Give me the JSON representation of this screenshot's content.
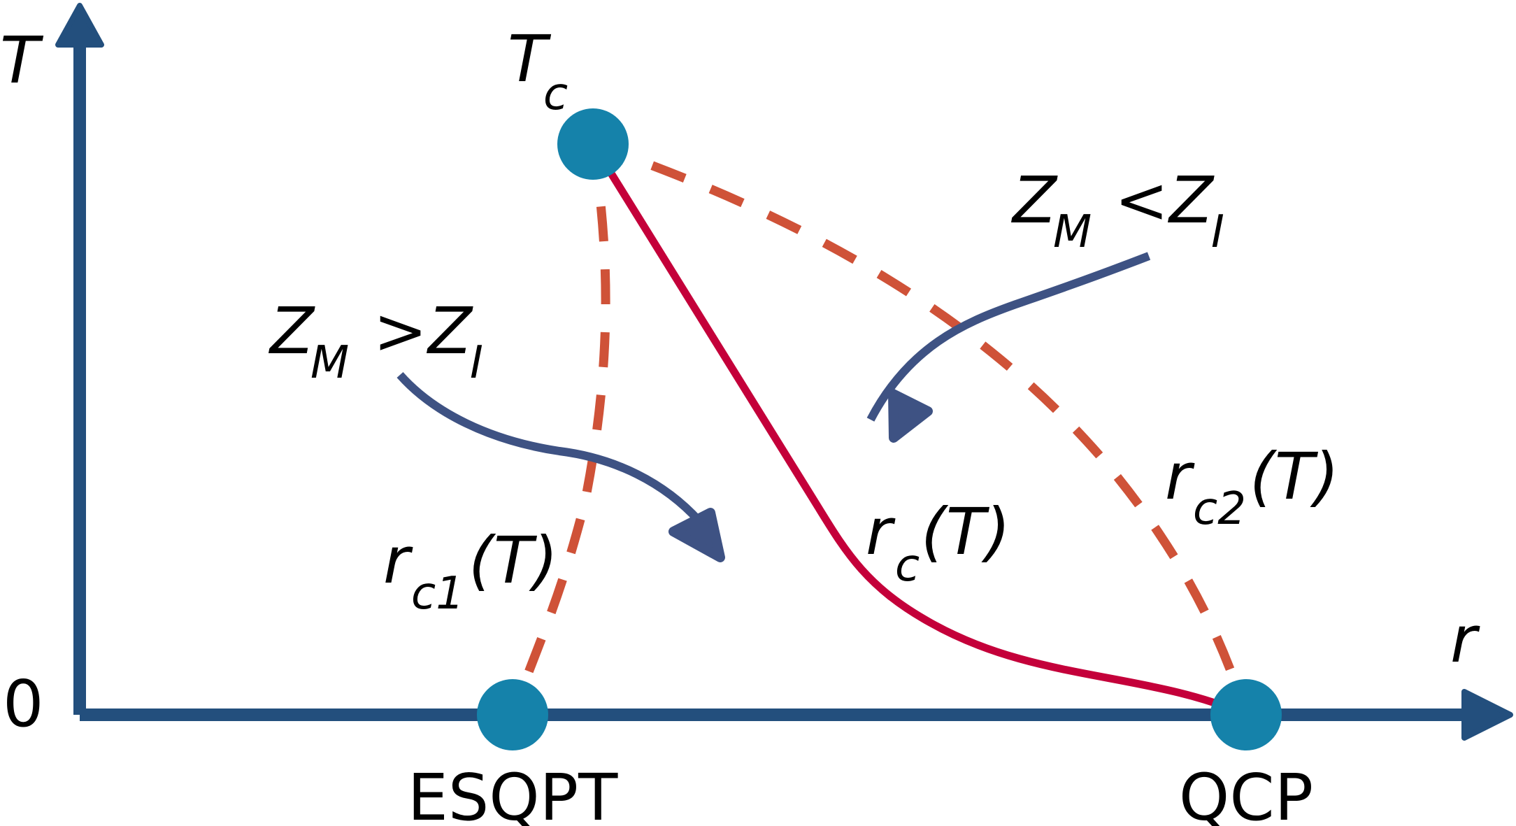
{
  "colors": {
    "axis": "#234f7d",
    "critical_point": "#1582aa",
    "rc_curve": "#c4003a",
    "dashed_curve": "#cf5238",
    "flow_arrow": "#3e5283",
    "text": "#000000"
  },
  "axes": {
    "y_label": "T",
    "x_label": "r",
    "origin_label": "0"
  },
  "points": {
    "tc": {
      "main": "T",
      "sub": "c"
    },
    "esqpt": "ESQPT",
    "qcp": "QCP"
  },
  "curves": {
    "rc1": {
      "main": "r",
      "sub": "c1",
      "arg": "(T)"
    },
    "rc": {
      "main": "r",
      "sub": "c",
      "arg": "(T)"
    },
    "rc2": {
      "main": "r",
      "sub": "c2",
      "arg": "(T)"
    }
  },
  "conditions": {
    "greater": {
      "left": "Z",
      "left_sub": "M",
      "op": ">",
      "right": "Z",
      "right_sub": "I"
    },
    "less": {
      "left": "Z",
      "left_sub": "M",
      "op": "<",
      "right": "Z",
      "right_sub": "I"
    }
  }
}
